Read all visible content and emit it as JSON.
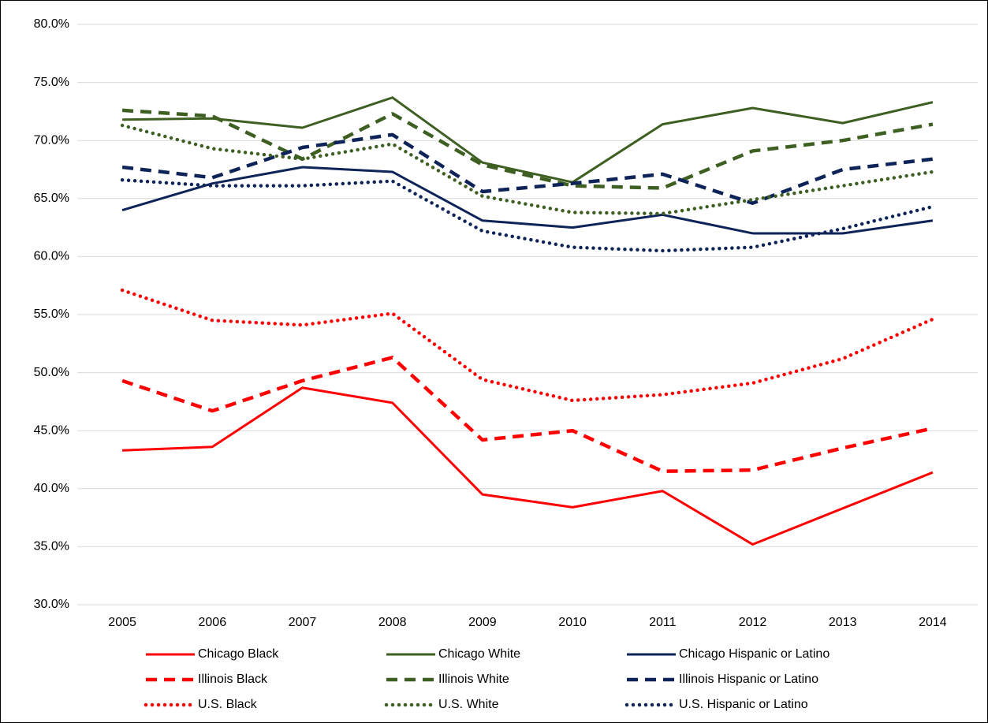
{
  "chart_data": {
    "type": "line",
    "categories": [
      "2005",
      "2006",
      "2007",
      "2008",
      "2009",
      "2010",
      "2011",
      "2012",
      "2013",
      "2014"
    ],
    "ylim": [
      30,
      80
    ],
    "yticks": [
      {
        "value": 30,
        "label": "30.0%"
      },
      {
        "value": 35,
        "label": "35.0%"
      },
      {
        "value": 40,
        "label": "40.0%"
      },
      {
        "value": 45,
        "label": "45.0%"
      },
      {
        "value": 50,
        "label": "50.0%"
      },
      {
        "value": 55,
        "label": "55.0%"
      },
      {
        "value": 60,
        "label": "60.0%"
      },
      {
        "value": 65,
        "label": "65.0%"
      },
      {
        "value": 70,
        "label": "70.0%"
      },
      {
        "value": 75,
        "label": "75.0%"
      },
      {
        "value": 80,
        "label": "80.0%"
      }
    ],
    "grid": true,
    "legend": "bottom",
    "series": [
      {
        "name": "Chicago Black",
        "color": "#ff0000",
        "style": "solid",
        "values": [
          43.3,
          43.6,
          48.7,
          47.4,
          39.5,
          38.4,
          39.8,
          35.2,
          38.3,
          41.4
        ]
      },
      {
        "name": "Chicago White",
        "color": "#3e5f22",
        "style": "solid",
        "values": [
          71.8,
          71.9,
          71.1,
          73.7,
          68.1,
          66.4,
          71.4,
          72.8,
          71.5,
          73.3
        ]
      },
      {
        "name": "Chicago Hispanic or Latino",
        "color": "#0e2458",
        "style": "solid",
        "values": [
          64.0,
          66.3,
          67.7,
          67.3,
          63.1,
          62.5,
          63.6,
          62.0,
          62.0,
          63.1
        ]
      },
      {
        "name": "Illinois Black",
        "color": "#ff0000",
        "style": "dashed",
        "values": [
          49.3,
          46.7,
          49.3,
          51.3,
          44.2,
          45.0,
          41.5,
          41.6,
          43.5,
          45.2
        ]
      },
      {
        "name": "Illinois White",
        "color": "#3e5f22",
        "style": "dashed",
        "values": [
          72.6,
          72.1,
          68.4,
          72.3,
          67.9,
          66.1,
          65.9,
          69.1,
          70.0,
          71.4
        ]
      },
      {
        "name": "Illinois Hispanic or Latino",
        "color": "#0e2458",
        "style": "dashed",
        "values": [
          67.7,
          66.8,
          69.4,
          70.5,
          65.6,
          66.3,
          67.1,
          64.6,
          67.5,
          68.4
        ]
      },
      {
        "name": "U.S. Black",
        "color": "#ff0000",
        "style": "dotted",
        "values": [
          57.1,
          54.5,
          54.1,
          55.1,
          49.4,
          47.6,
          48.1,
          49.1,
          51.2,
          54.6
        ]
      },
      {
        "name": "U.S. White",
        "color": "#3e5f22",
        "style": "dotted",
        "values": [
          71.3,
          69.3,
          68.4,
          69.7,
          65.2,
          63.8,
          63.7,
          64.9,
          66.1,
          67.3
        ]
      },
      {
        "name": "U.S. Hispanic or Latino",
        "color": "#0e2458",
        "style": "dotted",
        "values": [
          66.6,
          66.1,
          66.1,
          66.5,
          62.2,
          60.8,
          60.5,
          60.8,
          62.4,
          64.3
        ]
      }
    ]
  }
}
